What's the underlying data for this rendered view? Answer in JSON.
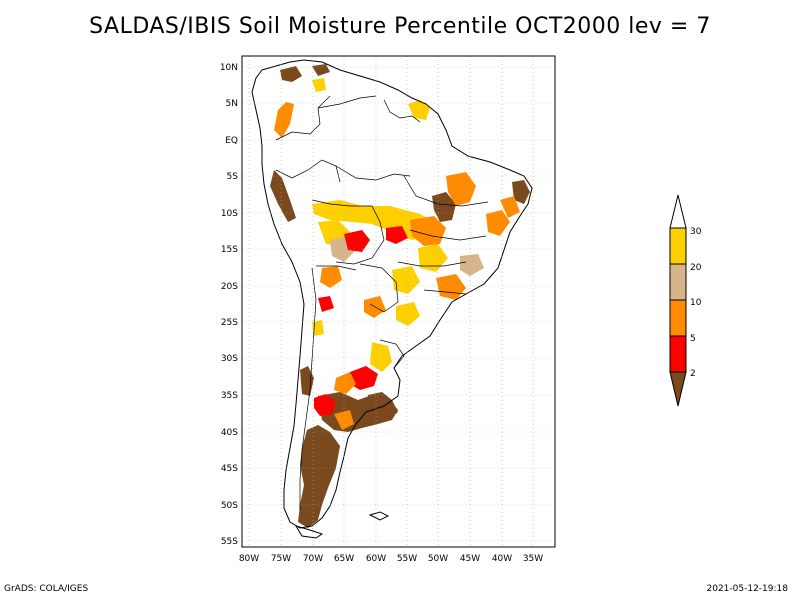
{
  "title": "SALDAS/IBIS Soil Moisture Percentile OCT2000 lev = 7",
  "map": {
    "lon_range": [
      -81,
      -32
    ],
    "lat_range": [
      -56,
      12
    ],
    "lon_ticks": [
      "80W",
      "75W",
      "70W",
      "65W",
      "60W",
      "55W",
      "50W",
      "45W",
      "40W",
      "35W"
    ],
    "lat_ticks": [
      "10N",
      "5N",
      "EQ",
      "5S",
      "10S",
      "15S",
      "20S",
      "25S",
      "30S",
      "35S",
      "40S",
      "45S",
      "50S",
      "55S"
    ],
    "grid": "dotted"
  },
  "colorbar": {
    "labels": [
      "2",
      "5",
      "10",
      "20",
      "30"
    ],
    "colors": {
      "below_2": "#7a4a1e",
      "2_5": "#ff0000",
      "5_10": "#ff8c00",
      "10_20": "#d8b48a",
      "20_30": "#ffd000",
      "above_30": "#ffffff"
    }
  },
  "footer": {
    "credit": "GrADS: COLA/IGES",
    "timestamp": "2021-05-12-19:18"
  }
}
